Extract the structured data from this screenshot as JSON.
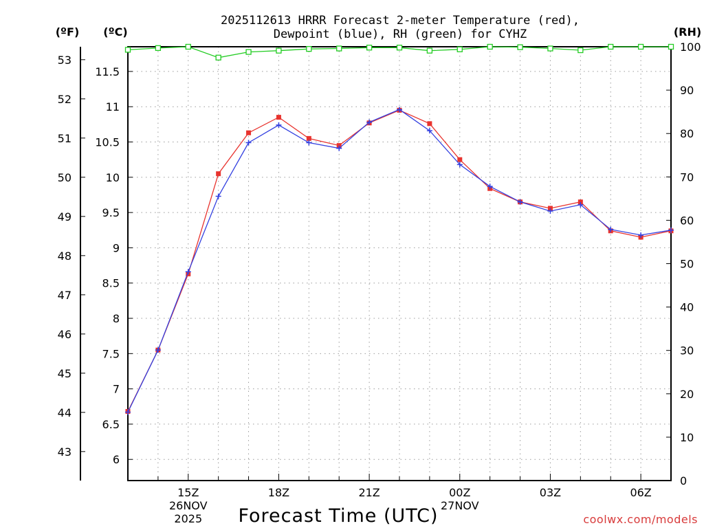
{
  "title_lines": [
    "2025112613 HRRR Forecast 2-meter Temperature (red),",
    "Dewpoint (blue), RH (green) for CYHZ"
  ],
  "units": {
    "fahrenheit": "(ºF)",
    "celsius": "(ºC)",
    "rh": "(RH)"
  },
  "xlabel": "Forecast Time (UTC)",
  "credit": "coolwx.com/models",
  "chart_data": {
    "type": "line",
    "title": "2025112613 HRRR Forecast 2-meter Temperature (red), Dewpoint (blue), RH (green) for CYHZ",
    "xlabel": "Forecast Time (UTC)",
    "x_hours": [
      13,
      14,
      15,
      16,
      17,
      18,
      19,
      20,
      21,
      22,
      23,
      24,
      25,
      26,
      27,
      28,
      29,
      30,
      31
    ],
    "x_range": [
      13,
      31
    ],
    "x_ticks": [
      {
        "hour": 15,
        "lines": [
          "15Z",
          "26NOV",
          "2025"
        ]
      },
      {
        "hour": 18,
        "lines": [
          "18Z"
        ]
      },
      {
        "hour": 21,
        "lines": [
          "21Z"
        ]
      },
      {
        "hour": 24,
        "lines": [
          "00Z",
          "27NOV"
        ]
      },
      {
        "hour": 27,
        "lines": [
          "03Z"
        ]
      },
      {
        "hour": 30,
        "lines": [
          "06Z"
        ]
      }
    ],
    "y_left_celsius": {
      "label": "(ºC)",
      "range": [
        5.7,
        11.85
      ],
      "ticks": [
        "6",
        "6.5",
        "7",
        "7.5",
        "8",
        "8.5",
        "9",
        "9.5",
        "10",
        "10.5",
        "11",
        "11.5"
      ]
    },
    "y_left_fahrenheit": {
      "label": "(ºF)",
      "ticks": [
        "43",
        "44",
        "45",
        "46",
        "47",
        "48",
        "49",
        "50",
        "51",
        "52",
        "53"
      ]
    },
    "y_right_rh": {
      "label": "(RH)",
      "range": [
        0,
        100
      ],
      "ticks": [
        "0",
        "10",
        "20",
        "30",
        "40",
        "50",
        "60",
        "70",
        "80",
        "90",
        "100"
      ]
    },
    "series": [
      {
        "name": "Temperature",
        "axis": "celsius",
        "color": "#e8332e",
        "marker": "filled-square",
        "values": [
          6.68,
          7.55,
          8.63,
          10.05,
          10.63,
          10.85,
          10.55,
          10.45,
          10.77,
          10.95,
          10.76,
          10.25,
          9.84,
          9.65,
          9.56,
          9.65,
          9.24,
          9.15,
          9.24
        ]
      },
      {
        "name": "Dewpoint",
        "axis": "celsius",
        "color": "#3340e0",
        "marker": "plus",
        "values": [
          6.67,
          7.55,
          8.66,
          9.73,
          10.49,
          10.74,
          10.49,
          10.41,
          10.78,
          10.96,
          10.66,
          10.18,
          9.87,
          9.65,
          9.52,
          9.61,
          9.26,
          9.18,
          9.25
        ]
      },
      {
        "name": "RH",
        "axis": "rh",
        "color": "#22cc22",
        "marker": "open-square",
        "values": [
          99.3,
          99.7,
          100,
          97.5,
          98.8,
          99.1,
          99.5,
          99.6,
          99.8,
          99.8,
          99.1,
          99.4,
          100,
          99.9,
          99.6,
          99.2,
          100,
          100,
          100
        ]
      }
    ]
  }
}
